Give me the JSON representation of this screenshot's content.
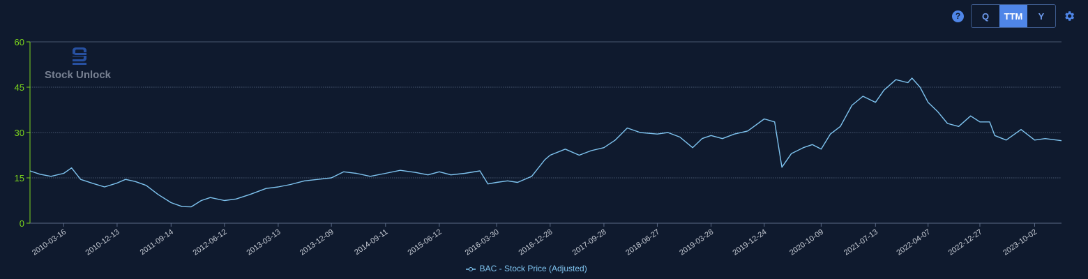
{
  "toolbar": {
    "help_label": "?",
    "periods": [
      "Q",
      "TTM",
      "Y"
    ],
    "active_period": "TTM",
    "icons": [
      "help-icon",
      "gear-icon"
    ]
  },
  "watermark": {
    "text": "Stock Unlock",
    "icon": "stock-unlock-logo-icon"
  },
  "colors": {
    "background": "#0f1a2e",
    "line": "#7fc4f0",
    "y_axis": "#7cd61d",
    "grid": "#5b6a86",
    "accent": "#4f86e8"
  },
  "chart_data": {
    "type": "line",
    "title": "",
    "xlabel": "",
    "ylabel": "",
    "ylim": [
      0,
      60
    ],
    "yticks": [
      0,
      15,
      30,
      45,
      60
    ],
    "grid": true,
    "legend_placement": "bottom-center",
    "xlim": [
      "2009-09-25",
      "2024-02-16"
    ],
    "xtick_labels": [
      "2010-03-16",
      "2010-12-13",
      "2011-09-14",
      "2012-06-12",
      "2013-03-13",
      "2013-12-09",
      "2014-09-11",
      "2015-06-12",
      "2016-03-30",
      "2016-12-28",
      "2017-09-28",
      "2018-06-27",
      "2019-03-28",
      "2019-12-24",
      "2020-10-09",
      "2021-07-13",
      "2022-04-07",
      "2022-12-27",
      "2023-10-02"
    ],
    "series": [
      {
        "name": "BAC - Stock Price (Adjusted)",
        "x": [
          "2009-09-25",
          "2009-11-15",
          "2010-01-10",
          "2010-03-16",
          "2010-04-25",
          "2010-06-10",
          "2010-08-10",
          "2010-10-10",
          "2010-12-13",
          "2011-01-25",
          "2011-03-15",
          "2011-05-10",
          "2011-07-10",
          "2011-09-14",
          "2011-11-10",
          "2011-12-25",
          "2012-02-15",
          "2012-04-01",
          "2012-06-12",
          "2012-08-10",
          "2012-10-20",
          "2013-01-10",
          "2013-03-13",
          "2013-05-15",
          "2013-07-25",
          "2013-10-01",
          "2013-12-09",
          "2014-02-10",
          "2014-04-15",
          "2014-06-25",
          "2014-09-11",
          "2014-11-25",
          "2015-02-10",
          "2015-04-15",
          "2015-06-12",
          "2015-08-10",
          "2015-10-20",
          "2016-01-05",
          "2016-02-15",
          "2016-03-30",
          "2016-05-25",
          "2016-07-15",
          "2016-09-25",
          "2016-12-01",
          "2016-12-28",
          "2017-03-15",
          "2017-05-25",
          "2017-07-25",
          "2017-09-28",
          "2017-11-25",
          "2018-01-25",
          "2018-04-01",
          "2018-06-27",
          "2018-08-20",
          "2018-10-20",
          "2018-12-24",
          "2019-02-10",
          "2019-03-28",
          "2019-05-25",
          "2019-07-25",
          "2019-10-01",
          "2019-12-24",
          "2020-02-15",
          "2020-03-23",
          "2020-05-10",
          "2020-07-10",
          "2020-08-25",
          "2020-10-09",
          "2020-11-25",
          "2021-01-15",
          "2021-03-15",
          "2021-05-10",
          "2021-07-13",
          "2021-08-25",
          "2021-10-25",
          "2021-12-25",
          "2022-01-15",
          "2022-02-25",
          "2022-04-07",
          "2022-05-25",
          "2022-07-15",
          "2022-09-10",
          "2022-11-10",
          "2022-12-27",
          "2023-02-15",
          "2023-03-13",
          "2023-05-10",
          "2023-07-25",
          "2023-10-02",
          "2023-11-25",
          "2024-02-16"
        ],
        "values": [
          17.3,
          16.2,
          15.5,
          16.5,
          18.3,
          14.5,
          13.2,
          12.0,
          13.3,
          14.5,
          13.8,
          12.5,
          9.5,
          6.8,
          5.5,
          5.4,
          7.5,
          8.5,
          7.5,
          8.0,
          9.5,
          11.5,
          12.0,
          12.8,
          14.0,
          14.5,
          15.0,
          17.0,
          16.5,
          15.5,
          16.5,
          17.5,
          16.8,
          16.0,
          17.0,
          16.0,
          16.5,
          17.3,
          13.0,
          13.5,
          14.0,
          13.5,
          15.5,
          21.0,
          22.5,
          24.5,
          22.5,
          24.0,
          25.0,
          27.5,
          31.5,
          30.0,
          29.5,
          30.0,
          28.5,
          25.0,
          28.0,
          29.0,
          28.0,
          29.5,
          30.5,
          34.5,
          33.5,
          18.5,
          23.0,
          25.0,
          26.0,
          24.5,
          29.5,
          32.0,
          39.0,
          42.0,
          40.0,
          44.0,
          47.5,
          46.5,
          48.0,
          45.0,
          40.0,
          37.0,
          33.0,
          32.0,
          35.5,
          33.5,
          33.5,
          29.0,
          27.5,
          31.0,
          27.5,
          28.0,
          27.3
        ]
      }
    ]
  }
}
